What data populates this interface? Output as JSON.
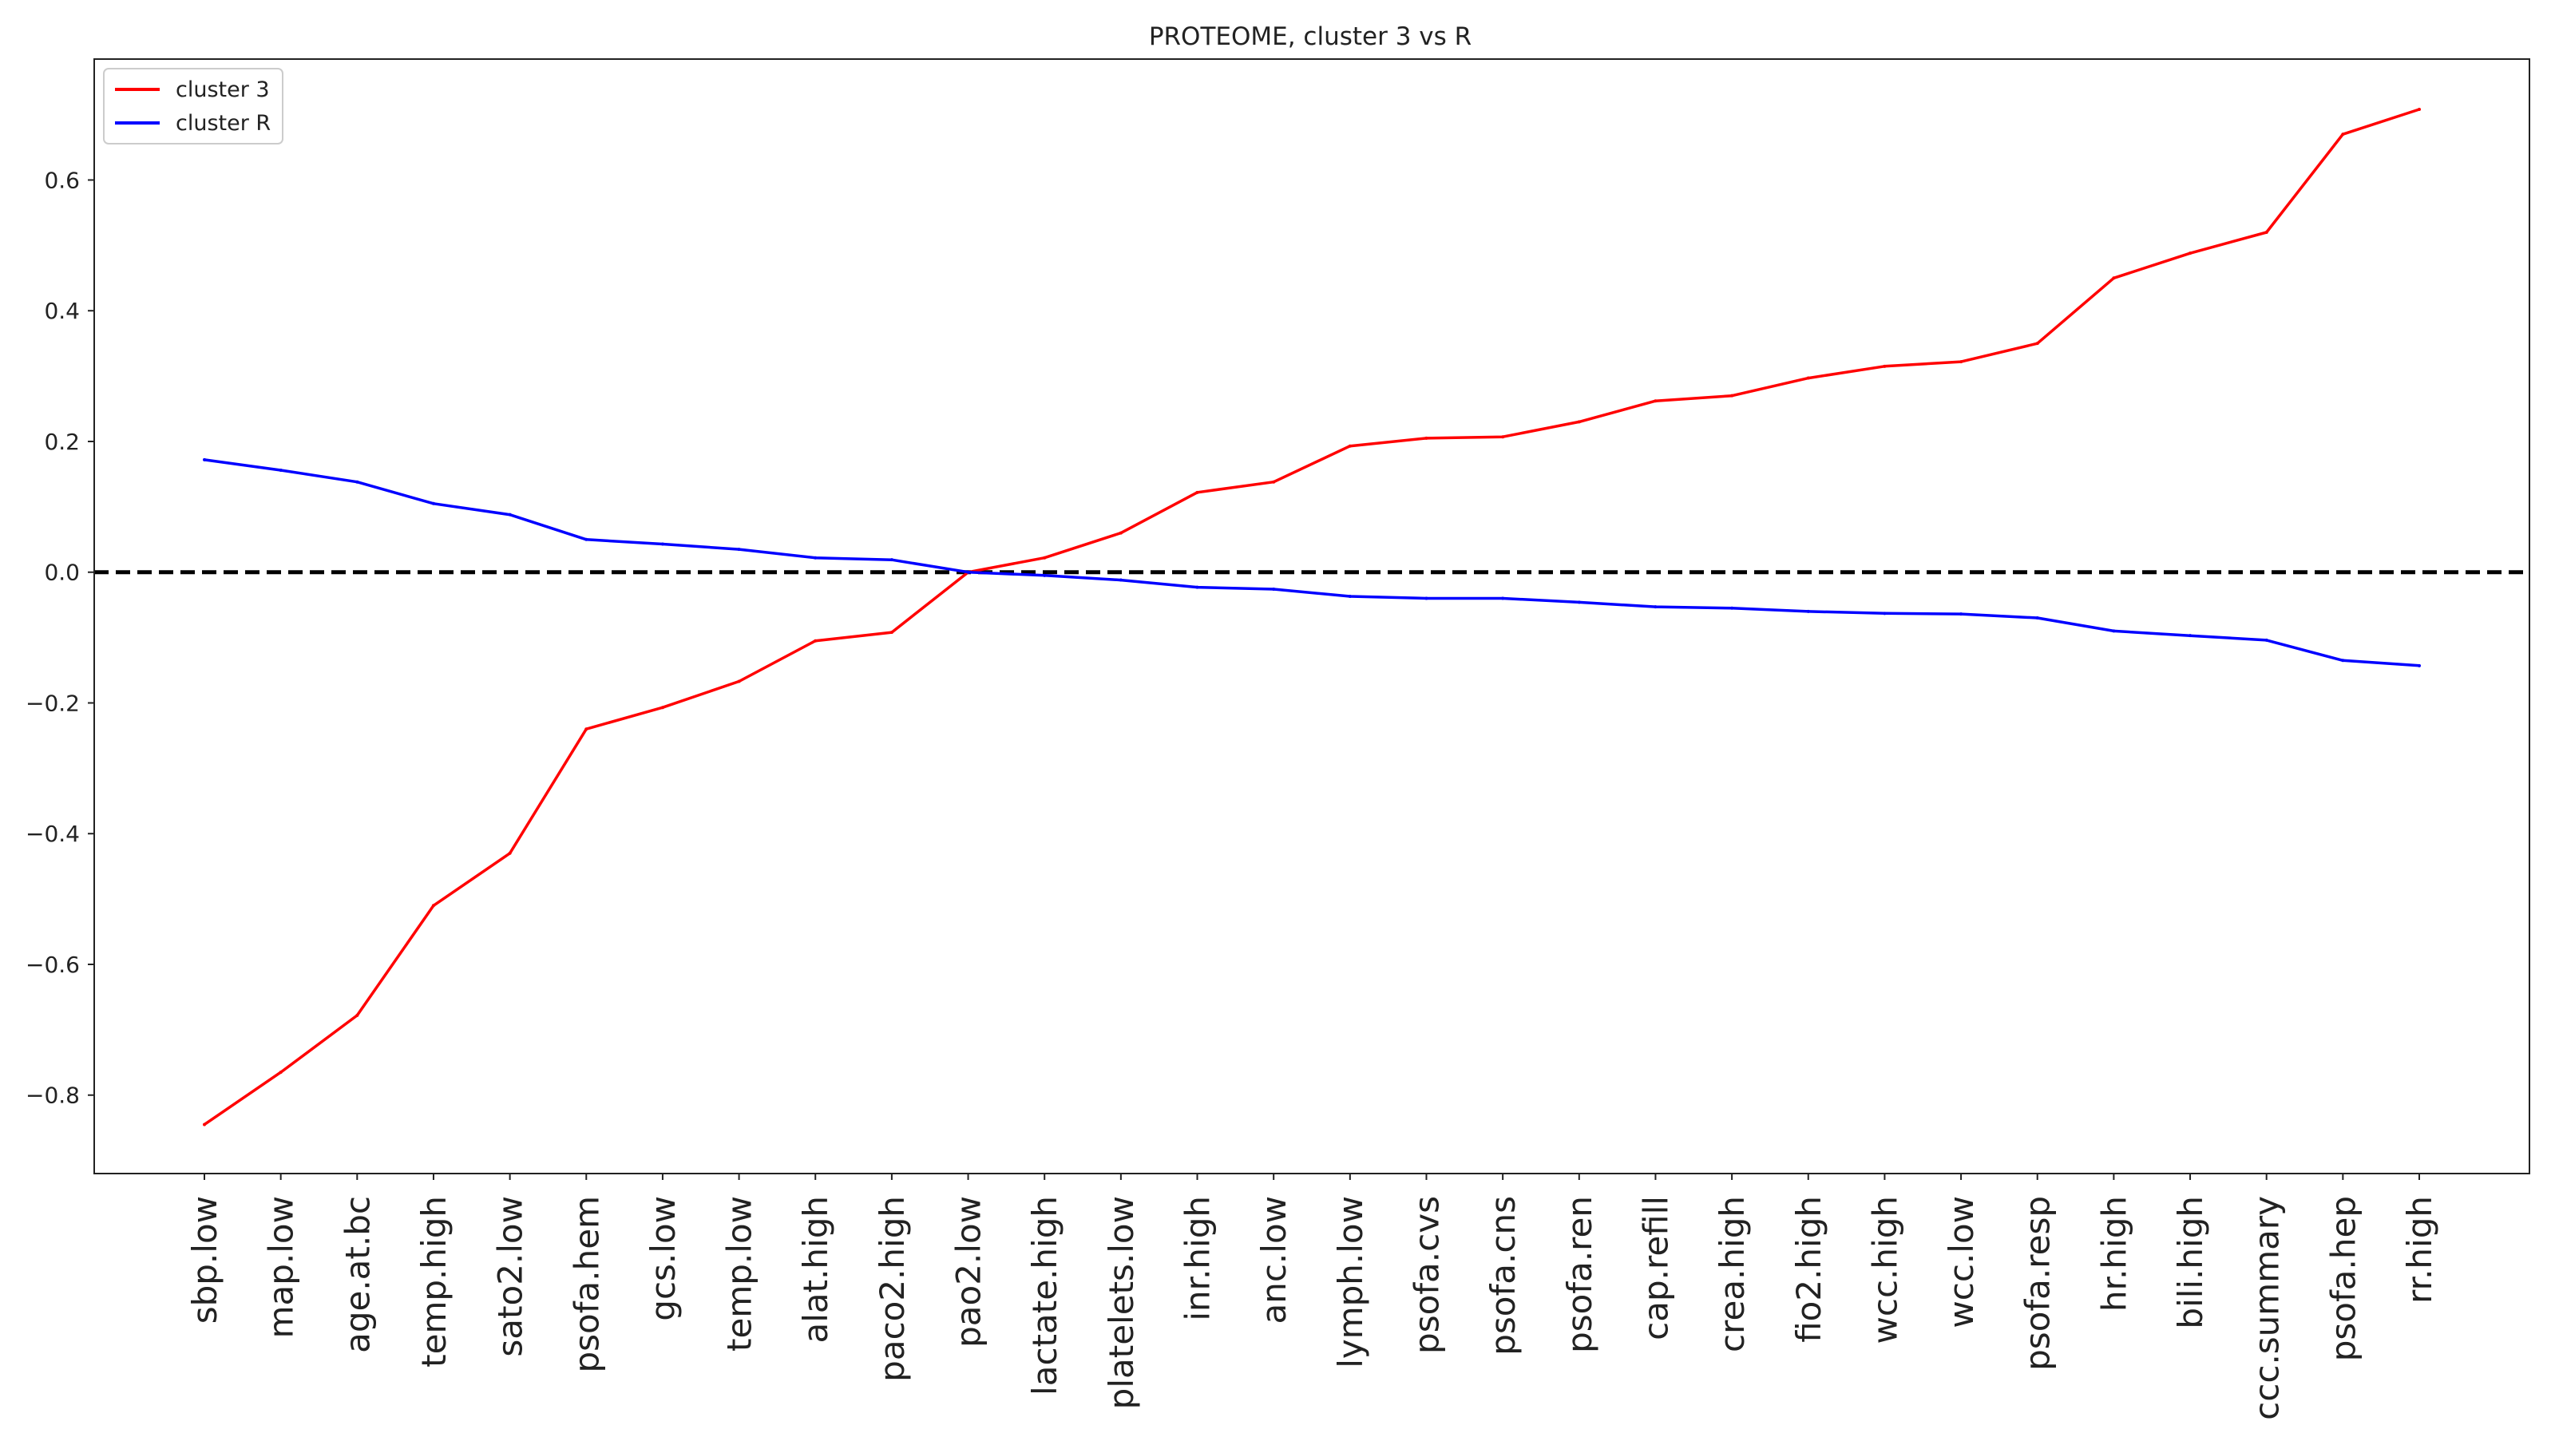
{
  "chart_data": {
    "type": "line",
    "title": "PROTEOME, cluster 3 vs R",
    "xlabel": "",
    "ylabel": "",
    "categories": [
      "sbp.low",
      "map.low",
      "age.at.bc",
      "temp.high",
      "sato2.low",
      "psofa.hem",
      "gcs.low",
      "temp.low",
      "alat.high",
      "paco2.high",
      "pao2.low",
      "lactate.high",
      "platelets.low",
      "inr.high",
      "anc.low",
      "lymph.low",
      "psofa.cvs",
      "psofa.cns",
      "psofa.ren",
      "cap.refill",
      "crea.high",
      "fio2.high",
      "wcc.high",
      "wcc.low",
      "psofa.resp",
      "hr.high",
      "bili.high",
      "ccc.summary",
      "psofa.hep",
      "rr.high"
    ],
    "series": [
      {
        "name": "cluster 3",
        "color": "#ff0000",
        "values": [
          -0.845,
          -0.765,
          -0.678,
          -0.51,
          -0.43,
          -0.24,
          -0.207,
          -0.167,
          -0.105,
          -0.092,
          0.0,
          0.022,
          0.06,
          0.122,
          0.138,
          0.193,
          0.205,
          0.207,
          0.23,
          0.262,
          0.27,
          0.297,
          0.315,
          0.322,
          0.35,
          0.45,
          0.488,
          0.52,
          0.67,
          0.708
        ]
      },
      {
        "name": "cluster R",
        "color": "#0000ff",
        "values": [
          0.172,
          0.156,
          0.138,
          0.105,
          0.088,
          0.05,
          0.043,
          0.035,
          0.022,
          0.019,
          0.0,
          -0.005,
          -0.012,
          -0.023,
          -0.026,
          -0.037,
          -0.04,
          -0.04,
          -0.046,
          -0.053,
          -0.055,
          -0.06,
          -0.063,
          -0.064,
          -0.07,
          -0.09,
          -0.097,
          -0.104,
          -0.135,
          -0.143
        ]
      }
    ],
    "reference_line": {
      "y": 0.0,
      "style": "dashed",
      "color": "#000000"
    },
    "ylim": [
      -0.92,
      0.785
    ],
    "yticks": [
      -0.8,
      -0.6,
      -0.4,
      -0.2,
      0.0,
      0.2,
      0.4,
      0.6
    ],
    "ytick_labels": [
      "−0.8",
      "−0.6",
      "−0.4",
      "−0.2",
      "0.0",
      "0.2",
      "0.4",
      "0.6"
    ],
    "grid": false,
    "legend_position": "top-left",
    "x_tick_rotation": "vertical"
  }
}
